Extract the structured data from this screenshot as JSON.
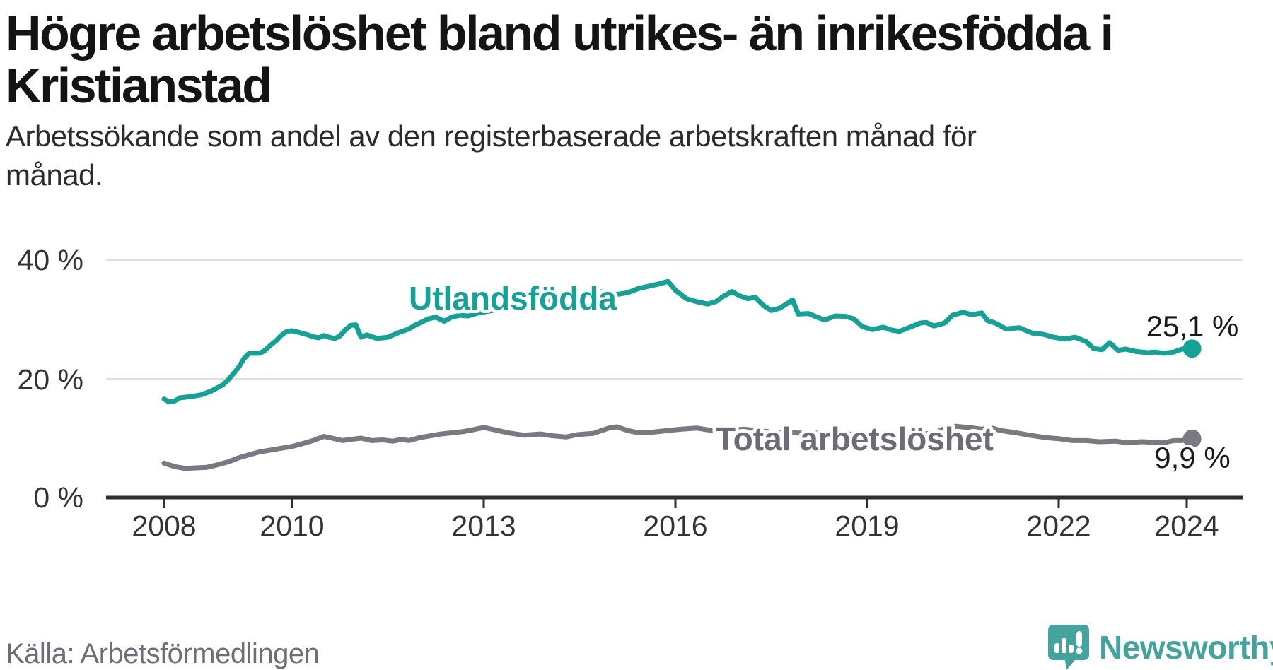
{
  "header": {
    "title_lines": [
      "Högre arbetslöshet bland utrikes- än inrikesfödda i",
      "Kristianstad"
    ],
    "subtitle_lines": [
      "Arbetssökande som andel av den registerbaserade arbetskraften månad för",
      "månad."
    ]
  },
  "footer": {
    "source": "Källa: Arbetsförmedlingen",
    "brand_name": "Newsworthy",
    "brand_color": "#44a49d"
  },
  "chart_data": {
    "type": "line",
    "title": "Högre arbetslöshet bland utrikes- än inrikesfödda i Kristianstad",
    "subtitle": "Arbetssökande som andel av den registerbaserade arbetskraften månad för månad.",
    "source": "Källa: Arbetsförmedlingen",
    "x_unit": "year (decimal; monthly observations)",
    "xlim": [
      2007.9,
      2024.6
    ],
    "ylim": [
      0,
      44
    ],
    "grid": "horizontal",
    "legend_position": "inline-labels",
    "y_ticks": [
      {
        "value": 40,
        "label": "40 %"
      },
      {
        "value": 20,
        "label": "20 %"
      },
      {
        "value": 0,
        "label": "0 %"
      }
    ],
    "x_ticks": [
      {
        "value": 2008,
        "label": "2008"
      },
      {
        "value": 2010,
        "label": "2010"
      },
      {
        "value": 2013,
        "label": "2013"
      },
      {
        "value": 2016,
        "label": "2016"
      },
      {
        "value": 2019,
        "label": "2019"
      },
      {
        "value": 2022,
        "label": "2022"
      },
      {
        "value": 2024,
        "label": "2024"
      }
    ],
    "series": [
      {
        "name": "Utlandsfödda",
        "color": "#13a295",
        "label_color": "#13a295",
        "end_label": "25,1 %",
        "end_value": 25.1,
        "points": [
          [
            2008.0,
            16.6
          ],
          [
            2008.08,
            16.1
          ],
          [
            2008.17,
            16.3
          ],
          [
            2008.25,
            16.8
          ],
          [
            2008.42,
            17.0
          ],
          [
            2008.58,
            17.3
          ],
          [
            2008.75,
            18.0
          ],
          [
            2008.92,
            19.0
          ],
          [
            2009.0,
            19.8
          ],
          [
            2009.08,
            20.8
          ],
          [
            2009.17,
            22.0
          ],
          [
            2009.25,
            23.4
          ],
          [
            2009.33,
            24.3
          ],
          [
            2009.5,
            24.3
          ],
          [
            2009.58,
            24.8
          ],
          [
            2009.67,
            25.7
          ],
          [
            2009.75,
            26.4
          ],
          [
            2009.83,
            27.3
          ],
          [
            2009.92,
            28.0
          ],
          [
            2010.0,
            28.1
          ],
          [
            2010.08,
            27.9
          ],
          [
            2010.25,
            27.4
          ],
          [
            2010.33,
            27.1
          ],
          [
            2010.42,
            26.9
          ],
          [
            2010.5,
            27.3
          ],
          [
            2010.58,
            27.0
          ],
          [
            2010.67,
            26.8
          ],
          [
            2010.75,
            27.2
          ],
          [
            2010.83,
            28.2
          ],
          [
            2010.92,
            29.0
          ],
          [
            2011.0,
            29.1
          ],
          [
            2011.08,
            27.0
          ],
          [
            2011.17,
            27.4
          ],
          [
            2011.33,
            26.8
          ],
          [
            2011.5,
            27.0
          ],
          [
            2011.67,
            27.8
          ],
          [
            2011.83,
            28.4
          ],
          [
            2011.92,
            29.0
          ],
          [
            2012.0,
            29.4
          ],
          [
            2012.13,
            30.1
          ],
          [
            2012.25,
            30.4
          ],
          [
            2012.38,
            29.7
          ],
          [
            2012.5,
            30.4
          ],
          [
            2012.63,
            30.7
          ],
          [
            2012.75,
            30.6
          ],
          [
            2012.92,
            31.1
          ],
          [
            2013.08,
            31.4
          ],
          [
            2013.25,
            31.8
          ],
          [
            2013.42,
            32.1
          ],
          [
            2013.58,
            32.4
          ],
          [
            2013.75,
            32.8
          ],
          [
            2013.92,
            33.1
          ],
          [
            2014.08,
            33.3
          ],
          [
            2014.25,
            33.6
          ],
          [
            2014.42,
            33.9
          ],
          [
            2014.58,
            34.2
          ],
          [
            2014.75,
            34.5
          ],
          [
            2014.92,
            34.8
          ],
          [
            2015.08,
            34.2
          ],
          [
            2015.25,
            34.5
          ],
          [
            2015.42,
            35.2
          ],
          [
            2015.58,
            35.6
          ],
          [
            2015.75,
            36.0
          ],
          [
            2015.88,
            36.4
          ],
          [
            2016.0,
            34.9
          ],
          [
            2016.17,
            33.5
          ],
          [
            2016.33,
            33.0
          ],
          [
            2016.5,
            32.6
          ],
          [
            2016.63,
            33.0
          ],
          [
            2016.75,
            33.9
          ],
          [
            2016.88,
            34.7
          ],
          [
            2017.0,
            34.0
          ],
          [
            2017.13,
            33.5
          ],
          [
            2017.25,
            33.7
          ],
          [
            2017.38,
            32.3
          ],
          [
            2017.5,
            31.5
          ],
          [
            2017.63,
            31.9
          ],
          [
            2017.75,
            32.7
          ],
          [
            2017.83,
            33.3
          ],
          [
            2017.92,
            30.9
          ],
          [
            2018.08,
            31.0
          ],
          [
            2018.21,
            30.4
          ],
          [
            2018.33,
            29.9
          ],
          [
            2018.5,
            30.6
          ],
          [
            2018.67,
            30.5
          ],
          [
            2018.79,
            30.1
          ],
          [
            2018.92,
            28.8
          ],
          [
            2019.08,
            28.3
          ],
          [
            2019.25,
            28.7
          ],
          [
            2019.38,
            28.2
          ],
          [
            2019.5,
            28.0
          ],
          [
            2019.67,
            28.7
          ],
          [
            2019.83,
            29.4
          ],
          [
            2019.92,
            29.5
          ],
          [
            2020.04,
            28.9
          ],
          [
            2020.21,
            29.4
          ],
          [
            2020.33,
            30.7
          ],
          [
            2020.5,
            31.2
          ],
          [
            2020.63,
            30.8
          ],
          [
            2020.79,
            31.1
          ],
          [
            2020.88,
            29.8
          ],
          [
            2021.0,
            29.4
          ],
          [
            2021.17,
            28.4
          ],
          [
            2021.38,
            28.6
          ],
          [
            2021.58,
            27.7
          ],
          [
            2021.75,
            27.5
          ],
          [
            2021.92,
            27.0
          ],
          [
            2022.08,
            26.7
          ],
          [
            2022.25,
            27.0
          ],
          [
            2022.42,
            26.3
          ],
          [
            2022.54,
            25.1
          ],
          [
            2022.67,
            24.9
          ],
          [
            2022.79,
            26.1
          ],
          [
            2022.92,
            24.8
          ],
          [
            2023.04,
            25.0
          ],
          [
            2023.21,
            24.6
          ],
          [
            2023.38,
            24.4
          ],
          [
            2023.5,
            24.5
          ],
          [
            2023.63,
            24.3
          ],
          [
            2023.79,
            24.5
          ],
          [
            2023.92,
            25.0
          ],
          [
            2024.08,
            25.1
          ]
        ]
      },
      {
        "name": "Total arbetslöshet",
        "color": "#7a7880",
        "label_color": "#6d6b75",
        "end_label": "9,9 %",
        "end_value": 9.9,
        "points": [
          [
            2008.0,
            5.8
          ],
          [
            2008.17,
            5.2
          ],
          [
            2008.33,
            4.9
          ],
          [
            2008.5,
            5.0
          ],
          [
            2008.67,
            5.1
          ],
          [
            2008.83,
            5.5
          ],
          [
            2009.0,
            6.0
          ],
          [
            2009.17,
            6.7
          ],
          [
            2009.33,
            7.2
          ],
          [
            2009.5,
            7.7
          ],
          [
            2009.67,
            8.0
          ],
          [
            2009.83,
            8.3
          ],
          [
            2010.0,
            8.6
          ],
          [
            2010.17,
            9.1
          ],
          [
            2010.33,
            9.6
          ],
          [
            2010.5,
            10.3
          ],
          [
            2010.63,
            10.0
          ],
          [
            2010.79,
            9.6
          ],
          [
            2010.92,
            9.8
          ],
          [
            2011.08,
            10.0
          ],
          [
            2011.25,
            9.6
          ],
          [
            2011.42,
            9.7
          ],
          [
            2011.58,
            9.5
          ],
          [
            2011.71,
            9.8
          ],
          [
            2011.83,
            9.6
          ],
          [
            2012.0,
            10.1
          ],
          [
            2012.17,
            10.4
          ],
          [
            2012.33,
            10.7
          ],
          [
            2012.5,
            10.9
          ],
          [
            2012.67,
            11.1
          ],
          [
            2012.83,
            11.4
          ],
          [
            2013.0,
            11.8
          ],
          [
            2013.17,
            11.4
          ],
          [
            2013.38,
            10.9
          ],
          [
            2013.63,
            10.5
          ],
          [
            2013.88,
            10.7
          ],
          [
            2014.08,
            10.4
          ],
          [
            2014.29,
            10.2
          ],
          [
            2014.46,
            10.6
          ],
          [
            2014.71,
            10.8
          ],
          [
            2014.96,
            11.7
          ],
          [
            2015.08,
            11.9
          ],
          [
            2015.25,
            11.3
          ],
          [
            2015.42,
            10.9
          ],
          [
            2015.63,
            11.0
          ],
          [
            2015.88,
            11.3
          ],
          [
            2016.08,
            11.5
          ],
          [
            2016.33,
            11.7
          ],
          [
            2016.5,
            11.4
          ],
          [
            2016.71,
            11.2
          ],
          [
            2016.92,
            11.4
          ],
          [
            2017.08,
            11.5
          ],
          [
            2017.33,
            11.2
          ],
          [
            2017.58,
            11.0
          ],
          [
            2017.83,
            10.9
          ],
          [
            2018.08,
            10.8
          ],
          [
            2018.33,
            10.9
          ],
          [
            2018.58,
            10.8
          ],
          [
            2018.83,
            10.6
          ],
          [
            2019.08,
            10.4
          ],
          [
            2019.33,
            10.3
          ],
          [
            2019.58,
            10.4
          ],
          [
            2019.83,
            10.6
          ],
          [
            2020.04,
            10.9
          ],
          [
            2020.21,
            11.6
          ],
          [
            2020.38,
            12.0
          ],
          [
            2020.58,
            11.8
          ],
          [
            2020.79,
            11.5
          ],
          [
            2020.92,
            11.8
          ],
          [
            2021.08,
            11.3
          ],
          [
            2021.33,
            10.9
          ],
          [
            2021.54,
            10.5
          ],
          [
            2021.79,
            10.1
          ],
          [
            2022.0,
            9.9
          ],
          [
            2022.21,
            9.6
          ],
          [
            2022.42,
            9.6
          ],
          [
            2022.63,
            9.4
          ],
          [
            2022.88,
            9.5
          ],
          [
            2023.08,
            9.2
          ],
          [
            2023.29,
            9.4
          ],
          [
            2023.5,
            9.3
          ],
          [
            2023.63,
            9.2
          ],
          [
            2023.79,
            9.6
          ],
          [
            2023.92,
            9.6
          ],
          [
            2024.08,
            9.9
          ]
        ]
      }
    ]
  }
}
